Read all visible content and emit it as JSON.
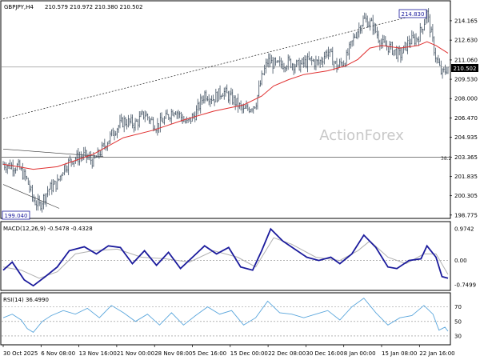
{
  "header": {
    "symbol": "GBPJPY,H4",
    "ohlc": "210.579 210.972 210.380 210.502"
  },
  "watermark": "ActionForex",
  "price_axis": {
    "ticks": [
      "214.165",
      "212.630",
      "211.060",
      "209.530",
      "208.000",
      "206.470",
      "204.935",
      "203.365",
      "201.835",
      "200.305",
      "198.775"
    ],
    "current_price_label": "210.502"
  },
  "annotations": {
    "high_label": "214.830",
    "low_label": "199.040",
    "fib_label": "38.2"
  },
  "macd": {
    "label": "MACD(12,26,9) -0.5478 -0.4328",
    "ticks": [
      "0.9742",
      "0.00",
      "-0.7499"
    ]
  },
  "rsi": {
    "label": "RSI(14) 36.4990",
    "ticks": [
      "70",
      "50",
      "30"
    ]
  },
  "time_axis": {
    "labels": [
      "30 Oct 2025",
      "6 Nov 08:00",
      "13 Nov 16:00",
      "21 Nov 00:00",
      "28 Nov 08:00",
      "5 Dec 16:00",
      "15 Dec 00:00",
      "22 Dec 08:00",
      "30 Dec 16:00",
      "8 Jan 00:00",
      "15 Jan 08:00",
      "22 Jan 16:00"
    ]
  },
  "colors": {
    "candles": "#405060",
    "moving_average": "#e03030",
    "macd_line": "#1a1a9c",
    "macd_signal": "#b0b0b0",
    "rsi_line": "#5aa6dc",
    "grid_dash": "#888888"
  },
  "chart_data": [
    {
      "type": "candlestick",
      "title": "GBPJPY,H4",
      "ylim": [
        198.7,
        215.3
      ],
      "price_path": [
        {
          "t": 0,
          "v": 202.8
        },
        {
          "t": 5,
          "v": 202.6
        },
        {
          "t": 8,
          "v": 201.5
        },
        {
          "t": 10,
          "v": 200.0
        },
        {
          "t": 12,
          "v": 199.5
        },
        {
          "t": 15,
          "v": 200.8
        },
        {
          "t": 18,
          "v": 201.3
        },
        {
          "t": 20,
          "v": 202.5
        },
        {
          "t": 23,
          "v": 203.2
        },
        {
          "t": 27,
          "v": 203.5
        },
        {
          "t": 30,
          "v": 203.0
        },
        {
          "t": 33,
          "v": 204.0
        },
        {
          "t": 37,
          "v": 205.5
        },
        {
          "t": 40,
          "v": 206.2
        },
        {
          "t": 44,
          "v": 206.0
        },
        {
          "t": 47,
          "v": 206.8
        },
        {
          "t": 51,
          "v": 205.8
        },
        {
          "t": 54,
          "v": 206.4
        },
        {
          "t": 57,
          "v": 207.2
        },
        {
          "t": 61,
          "v": 206.0
        },
        {
          "t": 64,
          "v": 206.8
        },
        {
          "t": 67,
          "v": 208.4
        },
        {
          "t": 70,
          "v": 208.0
        },
        {
          "t": 73,
          "v": 208.6
        },
        {
          "t": 77,
          "v": 207.8
        },
        {
          "t": 80,
          "v": 207.0
        },
        {
          "t": 84,
          "v": 207.6
        },
        {
          "t": 86,
          "v": 209.6
        },
        {
          "t": 88,
          "v": 211.0
        },
        {
          "t": 91,
          "v": 210.6
        },
        {
          "t": 95,
          "v": 210.9
        },
        {
          "t": 98,
          "v": 210.6
        },
        {
          "t": 102,
          "v": 211.0
        },
        {
          "t": 105,
          "v": 210.8
        },
        {
          "t": 108,
          "v": 211.8
        },
        {
          "t": 111,
          "v": 210.5
        },
        {
          "t": 114,
          "v": 211.1
        },
        {
          "t": 117,
          "v": 213.0
        },
        {
          "t": 120,
          "v": 214.3
        },
        {
          "t": 123,
          "v": 213.8
        },
        {
          "t": 126,
          "v": 212.3
        },
        {
          "t": 129,
          "v": 212.0
        },
        {
          "t": 132,
          "v": 211.4
        },
        {
          "t": 135,
          "v": 212.5
        },
        {
          "t": 138,
          "v": 212.8
        },
        {
          "t": 140,
          "v": 214.0
        },
        {
          "t": 141,
          "v": 214.83
        },
        {
          "t": 142,
          "v": 213.6
        },
        {
          "t": 144,
          "v": 211.2
        },
        {
          "t": 146,
          "v": 209.9
        },
        {
          "t": 148,
          "v": 210.5
        }
      ],
      "ma_path": [
        {
          "t": 0,
          "v": 202.8
        },
        {
          "t": 10,
          "v": 202.4
        },
        {
          "t": 18,
          "v": 202.6
        },
        {
          "t": 24,
          "v": 203.1
        },
        {
          "t": 30,
          "v": 203.6
        },
        {
          "t": 40,
          "v": 204.9
        },
        {
          "t": 50,
          "v": 205.5
        },
        {
          "t": 60,
          "v": 206.3
        },
        {
          "t": 70,
          "v": 207.0
        },
        {
          "t": 80,
          "v": 207.5
        },
        {
          "t": 86,
          "v": 208.2
        },
        {
          "t": 90,
          "v": 209.0
        },
        {
          "t": 95,
          "v": 209.5
        },
        {
          "t": 100,
          "v": 209.9
        },
        {
          "t": 108,
          "v": 210.2
        },
        {
          "t": 114,
          "v": 210.6
        },
        {
          "t": 118,
          "v": 211.1
        },
        {
          "t": 122,
          "v": 212.0
        },
        {
          "t": 126,
          "v": 212.2
        },
        {
          "t": 132,
          "v": 212.0
        },
        {
          "t": 138,
          "v": 212.2
        },
        {
          "t": 141,
          "v": 212.5
        },
        {
          "t": 144,
          "v": 212.2
        },
        {
          "t": 148,
          "v": 211.6
        }
      ],
      "trendline_upper": [
        {
          "t": 0,
          "v": 206.4
        },
        {
          "t": 141,
          "v": 214.83
        }
      ],
      "trendline_lower_channel": [
        {
          "t": 0,
          "v": 204.0
        },
        {
          "t": 20,
          "v": 203.4
        },
        {
          "t": 0,
          "v": 201.2
        },
        {
          "t": 16,
          "v": 199.3
        }
      ],
      "horizontal_levels": [
        {
          "label": "38.2",
          "value": 203.365
        },
        {
          "value": 210.502
        }
      ],
      "high": 214.83,
      "low": 199.04
    },
    {
      "type": "line",
      "title": "MACD(12,26,9)",
      "ylim": [
        -0.85,
        1.05
      ],
      "series": [
        {
          "name": "MACD",
          "values": [
            {
              "t": 0,
              "v": -0.3
            },
            {
              "t": 3,
              "v": -0.05
            },
            {
              "t": 7,
              "v": -0.6
            },
            {
              "t": 10,
              "v": -0.78
            },
            {
              "t": 14,
              "v": -0.5
            },
            {
              "t": 18,
              "v": -0.2
            },
            {
              "t": 22,
              "v": 0.3
            },
            {
              "t": 27,
              "v": 0.42
            },
            {
              "t": 31,
              "v": 0.2
            },
            {
              "t": 35,
              "v": 0.45
            },
            {
              "t": 39,
              "v": 0.4
            },
            {
              "t": 43,
              "v": -0.1
            },
            {
              "t": 47,
              "v": 0.3
            },
            {
              "t": 51,
              "v": -0.15
            },
            {
              "t": 55,
              "v": 0.25
            },
            {
              "t": 59,
              "v": -0.25
            },
            {
              "t": 63,
              "v": 0.1
            },
            {
              "t": 67,
              "v": 0.45
            },
            {
              "t": 71,
              "v": 0.2
            },
            {
              "t": 75,
              "v": 0.4
            },
            {
              "t": 79,
              "v": -0.2
            },
            {
              "t": 83,
              "v": -0.3
            },
            {
              "t": 86,
              "v": 0.3
            },
            {
              "t": 89,
              "v": 0.97
            },
            {
              "t": 93,
              "v": 0.6
            },
            {
              "t": 97,
              "v": 0.35
            },
            {
              "t": 101,
              "v": 0.1
            },
            {
              "t": 105,
              "v": 0.0
            },
            {
              "t": 109,
              "v": 0.1
            },
            {
              "t": 112,
              "v": -0.1
            },
            {
              "t": 116,
              "v": 0.2
            },
            {
              "t": 120,
              "v": 0.78
            },
            {
              "t": 124,
              "v": 0.4
            },
            {
              "t": 128,
              "v": -0.2
            },
            {
              "t": 131,
              "v": -0.25
            },
            {
              "t": 135,
              "v": 0.0
            },
            {
              "t": 139,
              "v": 0.05
            },
            {
              "t": 141,
              "v": 0.45
            },
            {
              "t": 144,
              "v": 0.1
            },
            {
              "t": 146,
              "v": -0.5
            },
            {
              "t": 148,
              "v": -0.55
            }
          ]
        },
        {
          "name": "Signal",
          "values": [
            {
              "t": 0,
              "v": -0.2
            },
            {
              "t": 6,
              "v": -0.3
            },
            {
              "t": 12,
              "v": -0.55
            },
            {
              "t": 18,
              "v": -0.35
            },
            {
              "t": 24,
              "v": 0.2
            },
            {
              "t": 30,
              "v": 0.3
            },
            {
              "t": 38,
              "v": 0.35
            },
            {
              "t": 46,
              "v": 0.1
            },
            {
              "t": 54,
              "v": 0.05
            },
            {
              "t": 62,
              "v": -0.05
            },
            {
              "t": 70,
              "v": 0.3
            },
            {
              "t": 78,
              "v": 0.1
            },
            {
              "t": 84,
              "v": -0.2
            },
            {
              "t": 90,
              "v": 0.7
            },
            {
              "t": 96,
              "v": 0.5
            },
            {
              "t": 104,
              "v": 0.1
            },
            {
              "t": 112,
              "v": 0.0
            },
            {
              "t": 118,
              "v": 0.3
            },
            {
              "t": 122,
              "v": 0.6
            },
            {
              "t": 128,
              "v": 0.1
            },
            {
              "t": 134,
              "v": -0.1
            },
            {
              "t": 140,
              "v": 0.2
            },
            {
              "t": 144,
              "v": 0.2
            },
            {
              "t": 148,
              "v": -0.43
            }
          ]
        }
      ]
    },
    {
      "type": "line",
      "title": "RSI(14)",
      "ylim": [
        20,
        85
      ],
      "levels": [
        70,
        50,
        30
      ],
      "series": [
        {
          "name": "RSI",
          "values": [
            {
              "t": 0,
              "v": 55
            },
            {
              "t": 3,
              "v": 60
            },
            {
              "t": 6,
              "v": 52
            },
            {
              "t": 8,
              "v": 40
            },
            {
              "t": 10,
              "v": 35
            },
            {
              "t": 13,
              "v": 50
            },
            {
              "t": 16,
              "v": 58
            },
            {
              "t": 20,
              "v": 65
            },
            {
              "t": 24,
              "v": 60
            },
            {
              "t": 28,
              "v": 68
            },
            {
              "t": 32,
              "v": 55
            },
            {
              "t": 36,
              "v": 72
            },
            {
              "t": 40,
              "v": 62
            },
            {
              "t": 44,
              "v": 50
            },
            {
              "t": 48,
              "v": 60
            },
            {
              "t": 52,
              "v": 45
            },
            {
              "t": 56,
              "v": 62
            },
            {
              "t": 60,
              "v": 45
            },
            {
              "t": 64,
              "v": 58
            },
            {
              "t": 68,
              "v": 70
            },
            {
              "t": 72,
              "v": 60
            },
            {
              "t": 76,
              "v": 65
            },
            {
              "t": 80,
              "v": 45
            },
            {
              "t": 84,
              "v": 55
            },
            {
              "t": 88,
              "v": 78
            },
            {
              "t": 92,
              "v": 62
            },
            {
              "t": 96,
              "v": 60
            },
            {
              "t": 100,
              "v": 55
            },
            {
              "t": 104,
              "v": 60
            },
            {
              "t": 108,
              "v": 65
            },
            {
              "t": 112,
              "v": 52
            },
            {
              "t": 116,
              "v": 70
            },
            {
              "t": 120,
              "v": 82
            },
            {
              "t": 124,
              "v": 62
            },
            {
              "t": 128,
              "v": 45
            },
            {
              "t": 132,
              "v": 55
            },
            {
              "t": 136,
              "v": 58
            },
            {
              "t": 140,
              "v": 72
            },
            {
              "t": 143,
              "v": 60
            },
            {
              "t": 145,
              "v": 38
            },
            {
              "t": 147,
              "v": 42
            },
            {
              "t": 148,
              "v": 36.5
            }
          ]
        }
      ]
    }
  ]
}
